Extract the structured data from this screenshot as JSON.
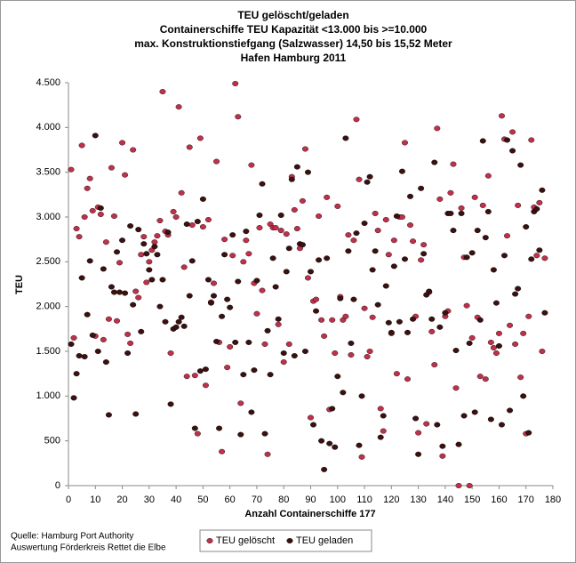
{
  "chart_data": {
    "type": "scatter",
    "title": [
      "TEU gelöscht/geladen",
      "Containerschiffe TEU Kapazität <13.000 bis >=10.000",
      "max. Konstruktionstiefgang (Salzwasser) 14,50 bis 15,52 Meter",
      "Hafen Hamburg 2011"
    ],
    "x_label": "Anzahl Containerschiffe 177",
    "y_label": "TEU",
    "source": [
      "Quelle: Hamburg Port Authority",
      "Auswertung Förderkreis Rettet die Elbe"
    ],
    "legend_position": "bottom",
    "xlim": [
      0,
      180
    ],
    "xticks": [
      0,
      10,
      20,
      30,
      40,
      50,
      60,
      70,
      80,
      90,
      100,
      110,
      120,
      130,
      140,
      150,
      160,
      170,
      180
    ],
    "ylim": [
      0,
      4500
    ],
    "yticks": [
      0,
      500,
      {
        "value": 1000,
        "label": "1.000"
      },
      {
        "value": 1500,
        "label": "1.500"
      },
      {
        "value": 2000,
        "label": "2.000"
      },
      {
        "value": 2500,
        "label": "2.500"
      },
      {
        "value": 3000,
        "label": "3.000"
      },
      {
        "value": 3500,
        "label": "3.500"
      },
      {
        "value": 4000,
        "label": "4.000"
      },
      {
        "value": 4500,
        "label": "4.500"
      }
    ],
    "x": [
      1,
      2,
      3,
      4,
      5,
      6,
      7,
      8,
      9,
      10,
      11,
      12,
      13,
      14,
      15,
      16,
      17,
      18,
      19,
      20,
      21,
      22,
      23,
      24,
      25,
      26,
      27,
      28,
      29,
      30,
      31,
      32,
      33,
      34,
      35,
      36,
      37,
      38,
      39,
      40,
      41,
      42,
      43,
      44,
      45,
      46,
      47,
      48,
      49,
      50,
      51,
      52,
      53,
      54,
      55,
      56,
      57,
      58,
      59,
      60,
      61,
      62,
      63,
      64,
      65,
      66,
      67,
      68,
      69,
      70,
      71,
      72,
      73,
      74,
      75,
      76,
      77,
      78,
      79,
      80,
      81,
      82,
      83,
      84,
      85,
      86,
      87,
      88,
      89,
      90,
      91,
      92,
      93,
      94,
      95,
      96,
      97,
      98,
      99,
      100,
      101,
      102,
      103,
      104,
      105,
      106,
      107,
      108,
      109,
      110,
      111,
      112,
      113,
      114,
      115,
      116,
      117,
      118,
      119,
      120,
      121,
      122,
      123,
      124,
      125,
      126,
      127,
      128,
      129,
      130,
      131,
      132,
      133,
      134,
      135,
      136,
      137,
      138,
      139,
      140,
      141,
      142,
      143,
      144,
      145,
      146,
      147,
      148,
      149,
      150,
      151,
      152,
      153,
      154,
      155,
      156,
      157,
      158,
      159,
      160,
      161,
      162,
      163,
      164,
      165,
      166,
      167,
      168,
      169,
      170,
      171,
      172,
      173,
      174,
      175,
      176,
      177
    ],
    "series": [
      {
        "name": "TEU gelöscht",
        "color": "#c0304a",
        "values": [
          3530,
          1650,
          2870,
          2780,
          3800,
          3000,
          3320,
          3430,
          3070,
          1670,
          3110,
          3030,
          1630,
          2720,
          1860,
          3550,
          3010,
          1840,
          2490,
          3830,
          3470,
          1690,
          1590,
          3750,
          2170,
          2100,
          2580,
          2780,
          2270,
          2500,
          2630,
          2720,
          2790,
          2960,
          4400,
          2840,
          2800,
          1480,
          3060,
          3000,
          4230,
          3270,
          2440,
          1220,
          3780,
          2910,
          1230,
          580,
          3880,
          2890,
          1120,
          2970,
          2050,
          2260,
          3620,
          1600,
          380,
          2750,
          1320,
          1550,
          2570,
          4490,
          4120,
          920,
          2500,
          2740,
          2590,
          3580,
          2260,
          1920,
          2880,
          2180,
          1580,
          350,
          2920,
          2880,
          2880,
          1800,
          2850,
          1380,
          2810,
          1580,
          3450,
          3080,
          2870,
          2650,
          3180,
          3760,
          2320,
          760,
          2060,
          2080,
          3010,
          1850,
          1670,
          3220,
          850,
          1850,
          1480,
          3120,
          2110,
          1850,
          1890,
          2800,
          1460,
          2740,
          4090,
          3420,
          320,
          1980,
          1440,
          1500,
          1880,
          3040,
          2850,
          860,
          610,
          2970,
          2580,
          1700,
          2740,
          1250,
          3000,
          3000,
          3830,
          1190,
          2910,
          2730,
          1890,
          590,
          2520,
          2690,
          690,
          2160,
          1720,
          1350,
          3990,
          3200,
          330,
          1890,
          1950,
          3270,
          3590,
          1090,
          0,
          3100,
          2550,
          2010,
          0,
          1650,
          3220,
          1880,
          1220,
          3130,
          1190,
          3460,
          1600,
          1540,
          1480,
          1700,
          4130,
          3870,
          2790,
          1790,
          3950,
          1580,
          3130,
          1210,
          1700,
          580,
          1890,
          3860,
          3110,
          2570,
          3160,
          1500,
          2540
        ]
      },
      {
        "name": "TEU geladen",
        "color": "#3a1010",
        "values": [
          1580,
          980,
          1250,
          1450,
          2320,
          1440,
          1910,
          2510,
          1680,
          3910,
          1500,
          3100,
          2420,
          1380,
          790,
          2220,
          2160,
          2610,
          2160,
          2740,
          2150,
          1480,
          2900,
          2020,
          800,
          2860,
          1720,
          2700,
          2590,
          2410,
          2300,
          2670,
          2580,
          2000,
          2300,
          1830,
          2830,
          910,
          1750,
          1770,
          1830,
          1880,
          1780,
          2920,
          2120,
          2510,
          640,
          2950,
          1280,
          3200,
          1300,
          2300,
          2040,
          2120,
          1610,
          640,
          1890,
          2580,
          2080,
          1990,
          2800,
          1600,
          2280,
          570,
          1240,
          2840,
          1600,
          820,
          1290,
          2290,
          3020,
          3370,
          580,
          1730,
          1240,
          2540,
          2220,
          1860,
          3020,
          1480,
          2390,
          2650,
          3420,
          1450,
          3560,
          2700,
          2690,
          1500,
          3500,
          2390,
          680,
          1950,
          2520,
          500,
          180,
          2540,
          470,
          860,
          430,
          1220,
          2090,
          1040,
          3880,
          2620,
          1590,
          2080,
          2820,
          450,
          1000,
          2930,
          3390,
          3450,
          2410,
          2620,
          2020,
          540,
          780,
          2230,
          1820,
          1710,
          2450,
          3010,
          1830,
          3510,
          2530,
          1710,
          3230,
          1860,
          750,
          350,
          3320,
          2590,
          2130,
          2170,
          1860,
          3610,
          680,
          1770,
          440,
          1930,
          3040,
          3040,
          2850,
          1510,
          460,
          3040,
          780,
          2550,
          1590,
          2600,
          820,
          2850,
          1850,
          3850,
          2770,
          3060,
          740,
          2410,
          2040,
          1560,
          680,
          2570,
          3860,
          840,
          3740,
          2140,
          2200,
          3580,
          1000,
          2890,
          590,
          2530,
          3060,
          3090,
          2630,
          3300,
          1930
        ]
      }
    ]
  }
}
